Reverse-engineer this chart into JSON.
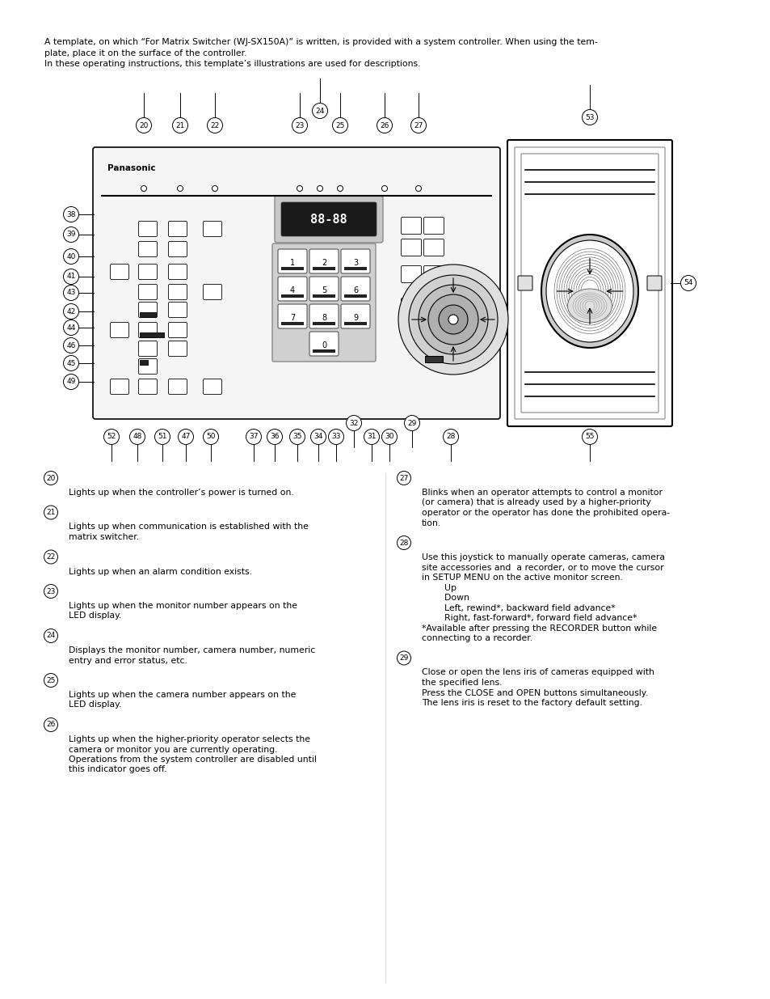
{
  "bg_color": "#ffffff",
  "text_color": "#000000",
  "intro_line1": "A template, on which “For Matrix Switcher (WJ-SX150A)” is written, is provided with a system controller. When using the tem-",
  "intro_line2": "plate, place it on the surface of the controller.",
  "intro_line3": "In these operating instructions, this template’s illustrations are used for descriptions.",
  "left_entries": [
    {
      "num": "20",
      "text": "Lights up when the controller’s power is turned on."
    },
    {
      "num": "21",
      "text": "Lights up when communication is established with the\nmatrix switcher."
    },
    {
      "num": "22",
      "text": "Lights up when an alarm condition exists."
    },
    {
      "num": "23",
      "text": "Lights up when the monitor number appears on the\nLED display."
    },
    {
      "num": "24",
      "text": "Displays the monitor number, camera number, numeric\nentry and error status, etc."
    },
    {
      "num": "25",
      "text": "Lights up when the camera number appears on the\nLED display."
    },
    {
      "num": "26",
      "text": "Lights up when the higher-priority operator selects the\ncamera or monitor you are currently operating.\nOperations from the system controller are disabled until\nthis indicator goes off."
    }
  ],
  "right_entries": [
    {
      "num": "27",
      "text": "Blinks when an operator attempts to control a monitor\n(or camera) that is already used by a higher-priority\noperator or the operator has done the prohibited opera-\ntion."
    },
    {
      "num": "28",
      "text": "Use this joystick to manually operate cameras, camera\nsite accessories and  a recorder, or to move the cursor\nin SETUP MENU on the active monitor screen.\n        Up\n        Down\n        Left, rewind*, backward field advance*\n        Right, fast-forward*, forward field advance*\n*Available after pressing the RECORDER button while\nconnecting to a recorder."
    },
    {
      "num": "29",
      "text": "Close or open the lens iris of cameras equipped with\nthe specified lens.\nPress the CLOSE and OPEN buttons simultaneously.\nThe lens iris is reset to the factory default setting."
    }
  ]
}
